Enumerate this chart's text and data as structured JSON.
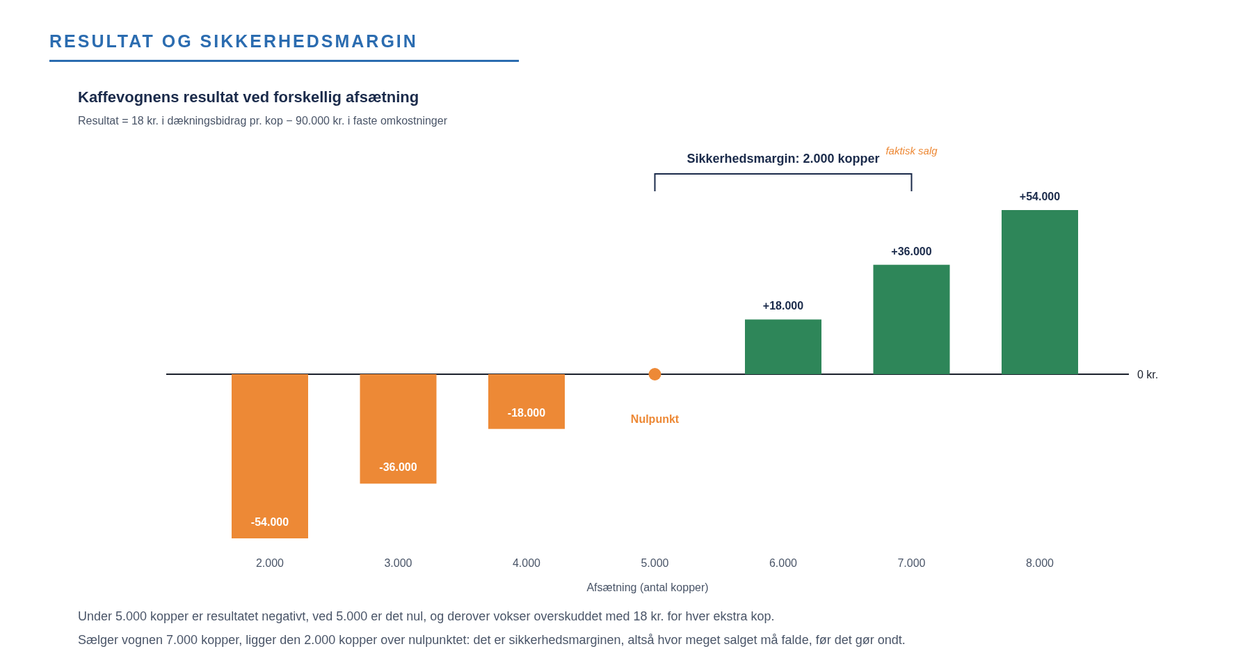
{
  "chart_data": {
    "type": "bar",
    "title": "RESULTAT OG SIKKERHEDSMARGIN",
    "subtitle": "Kaffevognens resultat ved forskellig afsætning",
    "xlabel": "Afsætning (antal kopper)",
    "categories": [
      "2.000",
      "3.000",
      "4.000",
      "5.000",
      "6.000",
      "7.000",
      "8.000"
    ],
    "series": [
      {
        "values": [
          -54000,
          -36000,
          -18000,
          0,
          18000,
          36000,
          54000
        ],
        "colors": [
          "#ed8936",
          "#ed8936",
          "#ed8936",
          "#ed8936",
          "#2e8659",
          "#2e8659",
          "#2e8659"
        ],
        "value_labels": [
          "-54.000",
          "-36.000",
          "-18.000",
          null,
          "+18.000",
          "+36.000",
          "+54.000"
        ]
      },
      {
        "type": "scatter",
        "x": [
          "5.000"
        ],
        "values": [
          0
        ],
        "color": "#ed8936",
        "marker": "circle"
      }
    ],
    "ref_lines": [
      {
        "axis": "y",
        "value": 0,
        "label": "0 kr.",
        "color": "#1a202c"
      }
    ],
    "annotations": [
      "Resultat = 18 kr. i dækningsbidrag pr. kop − 90.000 kr. i faste omkostninger",
      "Nulpunkt",
      "Sikkerhedsmargin: 2.000 kopper",
      "faktisk salg",
      "Under 5.000 kopper er resultatet negativt, ved 5.000 er det nul, og derover vokser overskuddet med 18 kr. for hver ekstra kop.",
      "Sælger vognen 7.000 kopper, ligger den 2.000 kopper over nulpunktet: det er sikkerhedsmarginen, altså hvor meget salget må falde, før det gør ondt."
    ]
  }
}
